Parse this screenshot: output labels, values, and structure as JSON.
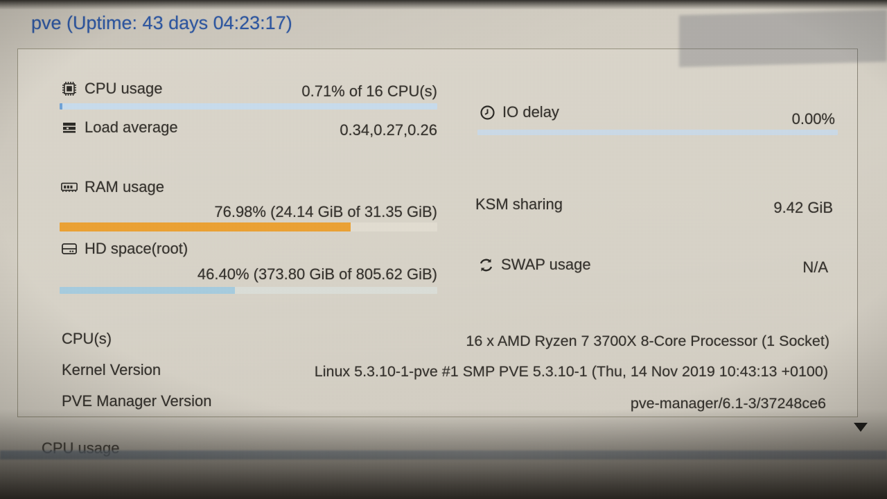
{
  "header": {
    "title": "pve (Uptime: 43 days 04:23:17)"
  },
  "summary": {
    "cpu": {
      "label": "CPU usage",
      "value": "0.71% of 16 CPU(s)",
      "percent": 0.71,
      "fill_color": "#6fa3d8",
      "track_color": "#c9ddee",
      "icon": "microchip-icon"
    },
    "load": {
      "label": "Load average",
      "value": "0.34,0.27,0.26",
      "icon": "tasks-icon"
    },
    "ram": {
      "label": "RAM usage",
      "value": "76.98% (24.14 GiB of 31.35 GiB)",
      "percent": 76.98,
      "fill_color": "#eda233",
      "track_color": "#e3ded2",
      "icon": "memory-icon"
    },
    "hd": {
      "label": "HD space(root)",
      "value": "46.40% (373.80 GiB of 805.62 GiB)",
      "percent": 46.4,
      "fill_color": "#a7cde0",
      "track_color": "#dcdfd9",
      "icon": "hdd-icon"
    },
    "io": {
      "label": "IO delay",
      "value": "0.00%",
      "percent": 0,
      "fill_color": "#6fa3d8",
      "track_color": "#ccdbe8",
      "icon": "clock-icon"
    },
    "ksm": {
      "label": "KSM sharing",
      "value": "9.42 GiB"
    },
    "swap": {
      "label": "SWAP usage",
      "value": "N/A",
      "icon": "refresh-icon"
    }
  },
  "info": {
    "cpus": {
      "label": "CPU(s)",
      "value": "16 x AMD Ryzen 7 3700X 8-Core Processor (1 Socket)"
    },
    "kernel": {
      "label": "Kernel Version",
      "value": "Linux 5.3.10-1-pve #1 SMP PVE 5.3.10-1 (Thu, 14 Nov 2019 10:43:13 +0100)"
    },
    "pve_manager": {
      "label": "PVE Manager Version",
      "value": "pve-manager/6.1-3/37248ce6"
    }
  },
  "next_section": {
    "title": "CPU usage"
  }
}
